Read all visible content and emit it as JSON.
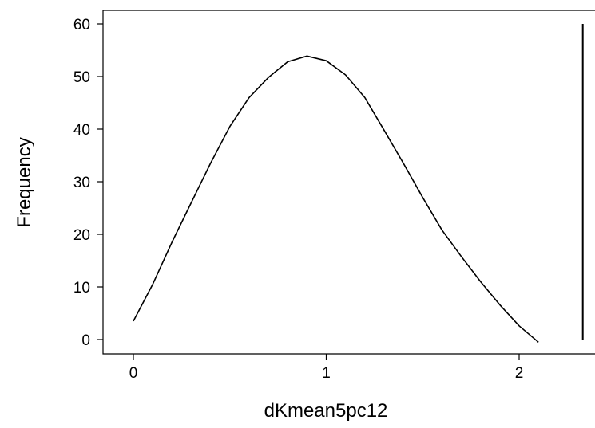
{
  "chart_data": {
    "type": "line",
    "title": "",
    "xlabel": "dKmean5pc12",
    "ylabel": "Frequency",
    "xlim": [
      0,
      2.25
    ],
    "ylim": [
      -1,
      60.5
    ],
    "x_ticks": [
      0,
      1,
      2
    ],
    "y_ticks": [
      0,
      10,
      20,
      30,
      40,
      50,
      60
    ],
    "grid": false,
    "legend": "none",
    "line_color": "#000000",
    "series": [
      {
        "x": [
          0,
          0.1,
          0.2,
          0.3,
          0.4,
          0.5,
          0.6,
          0.7,
          0.8,
          0.9,
          1.0,
          1.1,
          1.2,
          1.3,
          1.4,
          1.5,
          1.6,
          1.7,
          1.8,
          1.9,
          2.0,
          2.1
        ],
        "y": [
          3.5,
          10.5,
          18.5,
          26.0,
          33.5,
          40.5,
          46.0,
          49.8,
          52.8,
          53.9,
          53.0,
          50.3,
          46.0,
          39.8,
          33.5,
          27.0,
          20.8,
          15.8,
          11.0,
          6.6,
          2.6,
          -0.5
        ]
      }
    ],
    "vertical_line": {
      "x": 2.33,
      "y_from": 0,
      "y_to": 60
    }
  }
}
